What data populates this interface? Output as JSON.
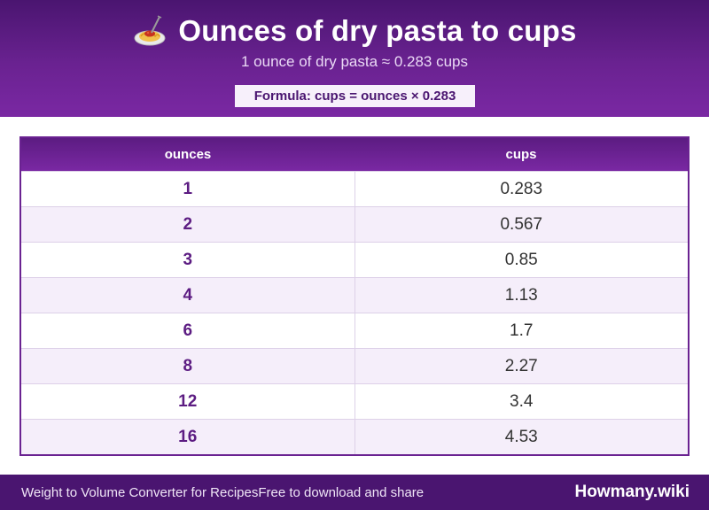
{
  "header": {
    "icon": "pasta-icon",
    "title": "Ounces of dry pasta to cups",
    "subtitle": "1 ounce of dry pasta ≈ 0.283 cups",
    "formula": "Formula: cups = ounces × 0.283"
  },
  "table": {
    "columns": [
      "ounces",
      "cups"
    ],
    "rows": [
      {
        "ounces": "1",
        "cups": "0.283"
      },
      {
        "ounces": "2",
        "cups": "0.567"
      },
      {
        "ounces": "3",
        "cups": "0.85"
      },
      {
        "ounces": "4",
        "cups": "1.13"
      },
      {
        "ounces": "6",
        "cups": "1.7"
      },
      {
        "ounces": "8",
        "cups": "2.27"
      },
      {
        "ounces": "12",
        "cups": "3.4"
      },
      {
        "ounces": "16",
        "cups": "4.53"
      }
    ]
  },
  "footer": {
    "left_a": "Weight to Volume Converter for Recipes",
    "left_b": "Free to download and share",
    "brand": "Howmany.wiki"
  },
  "colors": {
    "brand_purple": "#6a2291",
    "dark_purple": "#4a1570",
    "row_alt": "#f5eefa"
  }
}
